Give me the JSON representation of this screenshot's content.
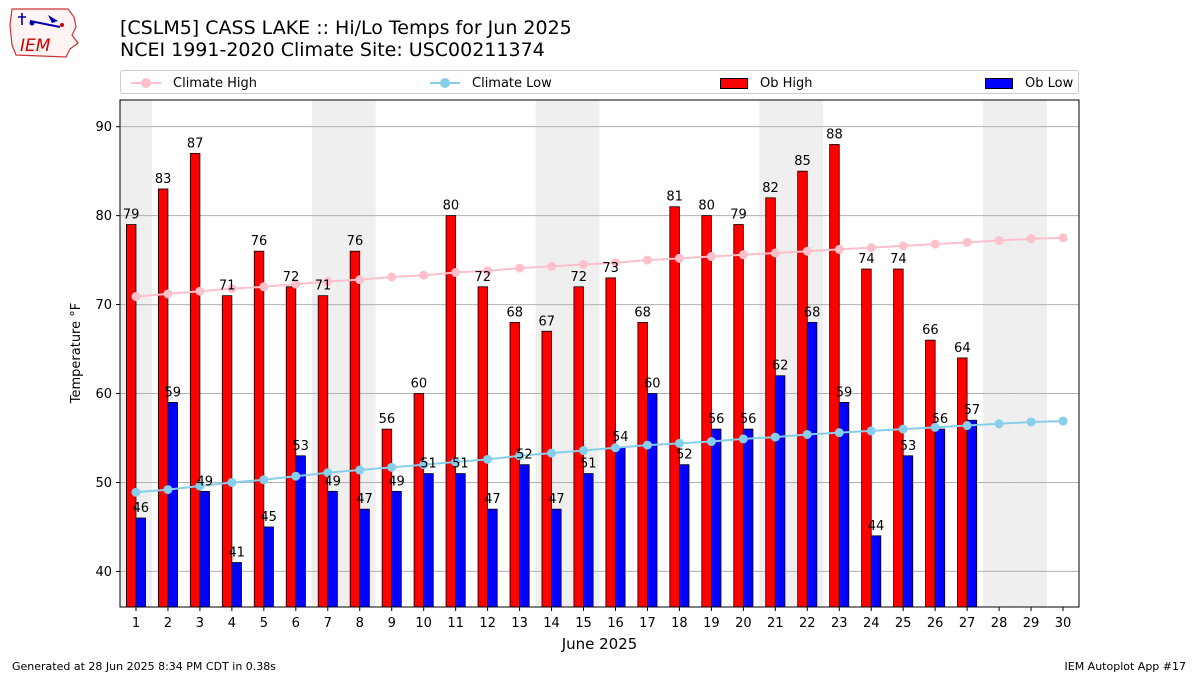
{
  "header": {
    "title_line1": "[CSLM5] CASS LAKE :: Hi/Lo Temps for Jun 2025",
    "title_line2": "NCEI 1991-2020 Climate Site: USC00211374"
  },
  "logo": {
    "text": "IEM"
  },
  "footer": {
    "left": "Generated at 28 Jun 2025 8:34 PM CDT in 0.38s",
    "right": "IEM Autoplot App #17"
  },
  "legend": [
    {
      "label": "Climate High",
      "kind": "line",
      "color": "#ffc0cb"
    },
    {
      "label": "Climate Low",
      "kind": "line",
      "color": "#87ceeb"
    },
    {
      "label": "Ob High",
      "kind": "bar",
      "color": "#ff0000"
    },
    {
      "label": "Ob Low",
      "kind": "bar",
      "color": "#0000ff"
    }
  ],
  "chart_data": {
    "type": "bar",
    "xlabel": "June 2025",
    "ylabel": "Temperature °F",
    "ylim": [
      36,
      93
    ],
    "yticks": [
      40,
      50,
      60,
      70,
      80,
      90
    ],
    "grid": true,
    "legend_position": "top",
    "weekend_shading_days": [
      1,
      7,
      8,
      14,
      15,
      21,
      22,
      28,
      29
    ],
    "x": [
      1,
      2,
      3,
      4,
      5,
      6,
      7,
      8,
      9,
      10,
      11,
      12,
      13,
      14,
      15,
      16,
      17,
      18,
      19,
      20,
      21,
      22,
      23,
      24,
      25,
      26,
      27,
      28,
      29,
      30
    ],
    "series": [
      {
        "name": "Ob High",
        "type": "bar",
        "color": "#ff0000",
        "values": [
          79,
          83,
          87,
          71,
          76,
          72,
          71,
          76,
          56,
          60,
          80,
          72,
          68,
          67,
          72,
          73,
          68,
          81,
          80,
          79,
          82,
          85,
          88,
          74,
          74,
          66,
          64,
          null,
          null,
          null
        ]
      },
      {
        "name": "Ob Low",
        "type": "bar",
        "color": "#0000ff",
        "values": [
          46,
          59,
          49,
          41,
          45,
          53,
          49,
          47,
          49,
          51,
          51,
          47,
          52,
          47,
          51,
          54,
          60,
          52,
          56,
          56,
          62,
          68,
          59,
          44,
          53,
          56,
          57,
          null,
          null,
          null
        ]
      },
      {
        "name": "Climate High",
        "type": "line",
        "color": "#ffc0cb",
        "values": [
          70.9,
          71.2,
          71.5,
          71.8,
          72.0,
          72.3,
          72.6,
          72.8,
          73.1,
          73.3,
          73.6,
          73.8,
          74.1,
          74.3,
          74.5,
          74.7,
          75.0,
          75.2,
          75.4,
          75.6,
          75.8,
          76.0,
          76.2,
          76.4,
          76.6,
          76.8,
          77.0,
          77.2,
          77.4,
          77.5
        ]
      },
      {
        "name": "Climate Low",
        "type": "line",
        "color": "#87ceeb",
        "values": [
          48.9,
          49.2,
          49.6,
          50.0,
          50.3,
          50.7,
          51.1,
          51.4,
          51.7,
          52.0,
          52.3,
          52.6,
          53.0,
          53.3,
          53.6,
          53.9,
          54.2,
          54.4,
          54.6,
          54.9,
          55.1,
          55.4,
          55.6,
          55.8,
          56.0,
          56.2,
          56.4,
          56.6,
          56.8,
          56.9
        ]
      }
    ]
  }
}
